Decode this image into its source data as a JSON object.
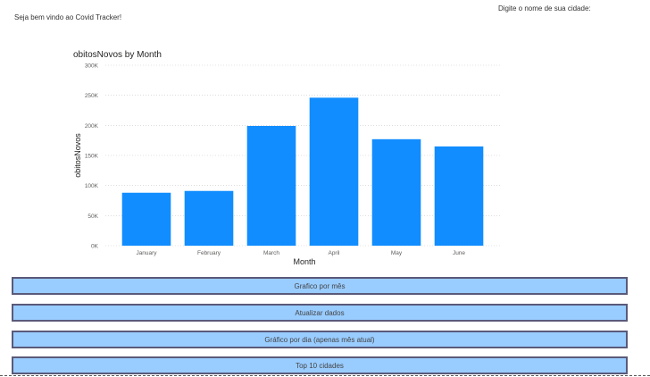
{
  "header": {
    "welcome": "Seja bem vindo ao Covid Tracker!",
    "city_prompt": "Digite o nome de sua cidade:"
  },
  "chart_data": {
    "type": "bar",
    "title": "obitosNovos by Month",
    "xlabel": "Month",
    "ylabel": "obitosNovos",
    "categories": [
      "January",
      "February",
      "March",
      "April",
      "May",
      "June"
    ],
    "values": [
      88000,
      91000,
      199000,
      246000,
      177000,
      165000
    ],
    "ylim": [
      0,
      300000
    ],
    "yticks": [
      0,
      50000,
      100000,
      150000,
      200000,
      250000,
      300000
    ],
    "ytick_labels": [
      "0K",
      "50K",
      "100K",
      "150K",
      "200K",
      "250K",
      "300K"
    ],
    "grid": true,
    "bar_color": "#118dff"
  },
  "buttons": [
    {
      "label": "Grafico por mês"
    },
    {
      "label": "Atualizar dados"
    },
    {
      "label": "Gráfico por dia (apenas mês atual)"
    },
    {
      "label": "Top 10 cidades"
    }
  ],
  "colors": {
    "button_fill": "#99ccff",
    "button_border": "#5a5a7a",
    "bar": "#118dff"
  }
}
